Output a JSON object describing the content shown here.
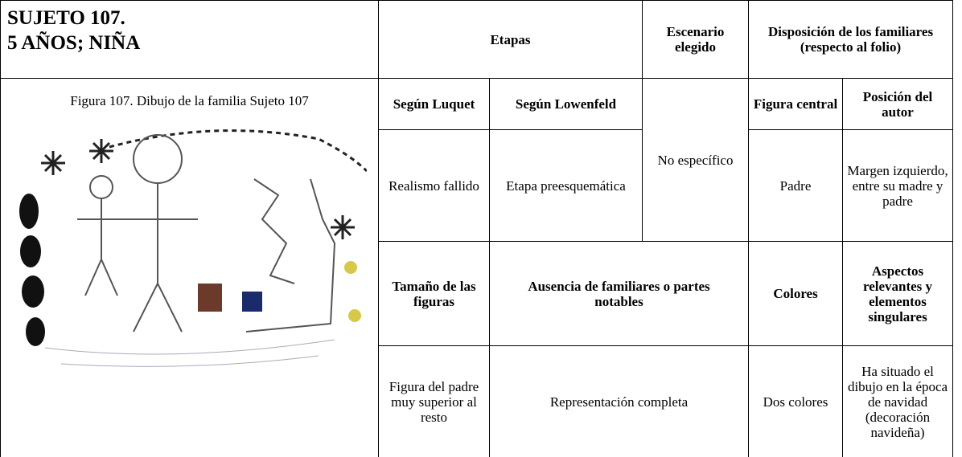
{
  "title": {
    "line1": "SUJETO 107.",
    "line2": "5 AÑOS; NIÑA"
  },
  "caption": "Figura 107. Dibujo de la familia Sujeto 107",
  "header": {
    "etapas": "Etapas",
    "escenario": "Escenario elegido",
    "disposicion": "Disposición de los familiares (respecto al folio)"
  },
  "row1": {
    "luquet": "Según Luquet",
    "lowenfeld": "Según Lowenfeld",
    "figura_central": "Figura central",
    "posicion": "Posición del autor"
  },
  "row2": {
    "luquet": "Realismo fallido",
    "lowenfeld": "Etapa preesquemática",
    "escenario": "No específico",
    "figura_central": "Padre",
    "posicion": "Margen izquierdo, entre su madre y padre"
  },
  "row3": {
    "tamano": "Tamaño de las figuras",
    "ausencia": "Ausencia de familiares o partes notables",
    "colores": "Colores",
    "aspectos": "Aspectos relevantes y elementos singulares"
  },
  "row4": {
    "tamano": "Figura del padre muy superior al resto",
    "ausencia": "Representación completa",
    "colores": "Dos colores",
    "aspectos": "Ha situado el dibujo en la época de navidad (decoración navideña)"
  }
}
